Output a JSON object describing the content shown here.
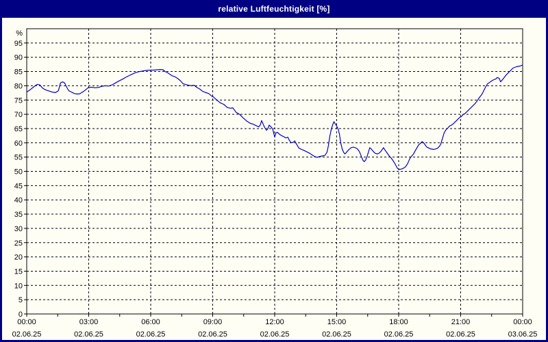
{
  "window": {
    "title": "relative Luftfeuchtigkeit [%]"
  },
  "colors": {
    "titlebar_bg": "#000082",
    "titlebar_text": "#ffffff",
    "frame": "#000082",
    "content_bg": "#fffef5",
    "plot_border": "#000000",
    "grid": "#000000",
    "tick_text": "#000000",
    "line": "#0000c8"
  },
  "chart_data": {
    "type": "line",
    "title": "relative Luftfeuchtigkeit [%]",
    "unit_label": "%",
    "ylim": [
      0,
      100
    ],
    "y_tick_step": 5,
    "y_tick_labels": [
      0,
      5,
      10,
      15,
      20,
      25,
      30,
      35,
      40,
      45,
      50,
      55,
      60,
      65,
      70,
      75,
      80,
      85,
      90,
      95
    ],
    "grid": true,
    "x_axis": {
      "minutes_span": 1440,
      "minor_tick_minutes": 90,
      "label_interval_minutes": 180,
      "labels": [
        {
          "time": "00:00",
          "date": "02.06.25"
        },
        {
          "time": "03:00",
          "date": "02.06.25"
        },
        {
          "time": "06:00",
          "date": "02.06.25"
        },
        {
          "time": "09:00",
          "date": "02.06.25"
        },
        {
          "time": "12:00",
          "date": "02.06.25"
        },
        {
          "time": "15:00",
          "date": "02.06.25"
        },
        {
          "time": "18:00",
          "date": "02.06.25"
        },
        {
          "time": "21:00",
          "date": "02.06.25"
        },
        {
          "time": "00:00",
          "date": "03.06.25"
        }
      ]
    },
    "series": [
      {
        "name": "relative Luftfeuchtigkeit [%]",
        "color": "#0000c8",
        "points": [
          [
            0,
            77.8
          ],
          [
            10,
            78.6
          ],
          [
            20,
            79.6
          ],
          [
            30,
            80.5
          ],
          [
            38,
            80.3
          ],
          [
            46,
            79.2
          ],
          [
            54,
            78.6
          ],
          [
            64,
            78.2
          ],
          [
            74,
            77.8
          ],
          [
            84,
            77.6
          ],
          [
            92,
            78.3
          ],
          [
            98,
            81.0
          ],
          [
            104,
            81.4
          ],
          [
            110,
            81.0
          ],
          [
            116,
            79.5
          ],
          [
            122,
            78.3
          ],
          [
            130,
            77.8
          ],
          [
            138,
            77.3
          ],
          [
            146,
            77.1
          ],
          [
            154,
            77.2
          ],
          [
            162,
            77.8
          ],
          [
            170,
            78.5
          ],
          [
            178,
            79.3
          ],
          [
            188,
            79.5
          ],
          [
            198,
            79.3
          ],
          [
            208,
            79.4
          ],
          [
            218,
            79.8
          ],
          [
            228,
            80.0
          ],
          [
            238,
            79.9
          ],
          [
            248,
            80.3
          ],
          [
            258,
            81.0
          ],
          [
            268,
            81.7
          ],
          [
            278,
            82.3
          ],
          [
            288,
            83.0
          ],
          [
            298,
            83.6
          ],
          [
            308,
            84.2
          ],
          [
            318,
            84.7
          ],
          [
            328,
            85.0
          ],
          [
            338,
            85.2
          ],
          [
            348,
            85.4
          ],
          [
            358,
            85.5
          ],
          [
            368,
            85.5
          ],
          [
            378,
            85.6
          ],
          [
            388,
            85.7
          ],
          [
            396,
            85.6
          ],
          [
            402,
            85.0
          ],
          [
            410,
            84.5
          ],
          [
            416,
            84.0
          ],
          [
            422,
            83.5
          ],
          [
            430,
            83.2
          ],
          [
            438,
            82.6
          ],
          [
            446,
            81.8
          ],
          [
            454,
            80.7
          ],
          [
            462,
            80.4
          ],
          [
            470,
            80.2
          ],
          [
            478,
            80.0
          ],
          [
            486,
            80.2
          ],
          [
            494,
            79.4
          ],
          [
            502,
            78.9
          ],
          [
            510,
            78.1
          ],
          [
            518,
            77.7
          ],
          [
            528,
            77.3
          ],
          [
            538,
            76.3
          ],
          [
            542,
            76.1
          ],
          [
            552,
            75.0
          ],
          [
            562,
            74.0
          ],
          [
            572,
            73.5
          ],
          [
            582,
            72.4
          ],
          [
            592,
            72.1
          ],
          [
            598,
            72.3
          ],
          [
            608,
            70.7
          ],
          [
            618,
            70.0
          ],
          [
            628,
            68.8
          ],
          [
            638,
            67.7
          ],
          [
            648,
            66.9
          ],
          [
            658,
            66.5
          ],
          [
            668,
            65.9
          ],
          [
            674,
            65.6
          ],
          [
            678,
            66.2
          ],
          [
            682,
            67.8
          ],
          [
            686,
            66.7
          ],
          [
            690,
            65.6
          ],
          [
            696,
            64.4
          ],
          [
            700,
            64.9
          ],
          [
            704,
            66.2
          ],
          [
            710,
            65.5
          ],
          [
            714,
            64.9
          ],
          [
            718,
            63.0
          ],
          [
            720,
            62.0
          ],
          [
            724,
            63.5
          ],
          [
            728,
            63.7
          ],
          [
            734,
            63.0
          ],
          [
            740,
            62.5
          ],
          [
            746,
            62.2
          ],
          [
            752,
            61.7
          ],
          [
            758,
            62.0
          ],
          [
            762,
            61.0
          ],
          [
            768,
            60.0
          ],
          [
            774,
            60.2
          ],
          [
            778,
            60.7
          ],
          [
            784,
            59.4
          ],
          [
            790,
            58.2
          ],
          [
            796,
            57.8
          ],
          [
            802,
            57.5
          ],
          [
            812,
            56.9
          ],
          [
            822,
            56.3
          ],
          [
            832,
            55.5
          ],
          [
            838,
            55.1
          ],
          [
            844,
            54.9
          ],
          [
            850,
            55.2
          ],
          [
            858,
            55.4
          ],
          [
            866,
            55.6
          ],
          [
            872,
            56.7
          ],
          [
            876,
            59.0
          ],
          [
            880,
            62.2
          ],
          [
            884,
            64.6
          ],
          [
            888,
            66.2
          ],
          [
            892,
            67.4
          ],
          [
            896,
            66.6
          ],
          [
            900,
            65.9
          ],
          [
            904,
            64.9
          ],
          [
            908,
            63.1
          ],
          [
            912,
            59.9
          ],
          [
            916,
            57.9
          ],
          [
            920,
            56.7
          ],
          [
            924,
            56.1
          ],
          [
            930,
            56.9
          ],
          [
            936,
            57.7
          ],
          [
            942,
            58.3
          ],
          [
            948,
            58.5
          ],
          [
            954,
            58.3
          ],
          [
            960,
            57.9
          ],
          [
            966,
            56.9
          ],
          [
            972,
            55.1
          ],
          [
            976,
            53.9
          ],
          [
            980,
            53.4
          ],
          [
            984,
            53.9
          ],
          [
            988,
            55.1
          ],
          [
            992,
            56.7
          ],
          [
            996,
            58.3
          ],
          [
            1000,
            57.9
          ],
          [
            1006,
            57.0
          ],
          [
            1012,
            56.3
          ],
          [
            1018,
            56.1
          ],
          [
            1024,
            56.4
          ],
          [
            1030,
            57.3
          ],
          [
            1036,
            58.3
          ],
          [
            1040,
            57.5
          ],
          [
            1046,
            56.5
          ],
          [
            1052,
            55.5
          ],
          [
            1058,
            54.7
          ],
          [
            1064,
            53.7
          ],
          [
            1070,
            52.5
          ],
          [
            1076,
            51.1
          ],
          [
            1082,
            50.7
          ],
          [
            1088,
            50.8
          ],
          [
            1094,
            51.1
          ],
          [
            1100,
            51.6
          ],
          [
            1106,
            52.7
          ],
          [
            1112,
            54.4
          ],
          [
            1116,
            55.1
          ],
          [
            1122,
            55.9
          ],
          [
            1132,
            58.0
          ],
          [
            1138,
            59.3
          ],
          [
            1142,
            59.7
          ],
          [
            1148,
            60.4
          ],
          [
            1152,
            60.1
          ],
          [
            1158,
            59.1
          ],
          [
            1162,
            58.5
          ],
          [
            1172,
            57.9
          ],
          [
            1182,
            57.7
          ],
          [
            1192,
            58.0
          ],
          [
            1198,
            58.7
          ],
          [
            1202,
            59.5
          ],
          [
            1208,
            61.9
          ],
          [
            1212,
            63.5
          ],
          [
            1218,
            64.7
          ],
          [
            1222,
            65.1
          ],
          [
            1228,
            65.9
          ],
          [
            1232,
            66.1
          ],
          [
            1238,
            66.6
          ],
          [
            1242,
            67.1
          ],
          [
            1248,
            67.8
          ],
          [
            1252,
            68.3
          ],
          [
            1258,
            69.0
          ],
          [
            1262,
            69.2
          ],
          [
            1268,
            70.0
          ],
          [
            1272,
            70.2
          ],
          [
            1282,
            71.4
          ],
          [
            1292,
            72.6
          ],
          [
            1302,
            73.8
          ],
          [
            1308,
            74.7
          ],
          [
            1312,
            75.5
          ],
          [
            1322,
            77.1
          ],
          [
            1332,
            79.5
          ],
          [
            1338,
            80.7
          ],
          [
            1342,
            81.0
          ],
          [
            1352,
            81.9
          ],
          [
            1358,
            82.2
          ],
          [
            1362,
            82.4
          ],
          [
            1366,
            82.9
          ],
          [
            1372,
            82.6
          ],
          [
            1376,
            81.4
          ],
          [
            1382,
            82.2
          ],
          [
            1392,
            83.8
          ],
          [
            1402,
            85.0
          ],
          [
            1412,
            86.2
          ],
          [
            1422,
            86.7
          ],
          [
            1432,
            86.9
          ],
          [
            1440,
            87.3
          ]
        ]
      }
    ]
  }
}
